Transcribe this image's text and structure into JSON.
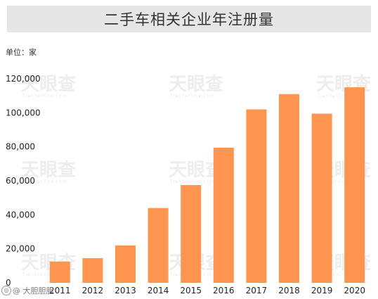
{
  "chart_data": {
    "type": "bar",
    "title": "二手车相关企业年注册量",
    "unit": "单位：家",
    "categories": [
      "2011",
      "2012",
      "2013",
      "2014",
      "2015",
      "2016",
      "2017",
      "2018",
      "2019",
      "2020"
    ],
    "values": [
      12500,
      14500,
      22000,
      44000,
      57500,
      79500,
      102000,
      111000,
      99500,
      115000
    ],
    "ylim": [
      0,
      120000
    ],
    "yticks": [
      "0",
      "20,000",
      "40,000",
      "60,000",
      "80,000",
      "100,000",
      "120,000"
    ],
    "yticks_values": [
      0,
      20000,
      40000,
      60000,
      80000,
      100000,
      120000
    ],
    "bar_color": "#ff954f",
    "grid": false,
    "legend": "none"
  },
  "watermark": {
    "text": "天眼查",
    "sub": "TianYanCha.com"
  },
  "footer": {
    "icon": "weibo-icon",
    "text": "@ 大胆胆胆"
  }
}
